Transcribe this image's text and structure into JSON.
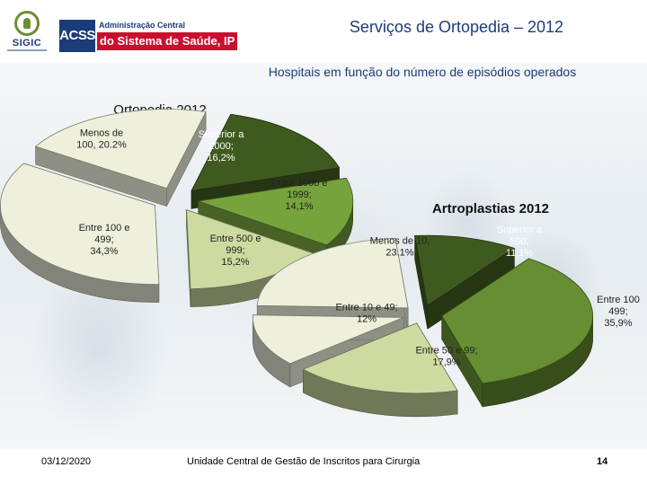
{
  "header": {
    "title": "Serviços de Ortopedia – 2012",
    "subtitle": "Hospitais em função do número de episódios operados",
    "logo_sigic": "SIGIC",
    "logo_acss_block": "ACSS",
    "logo_acss_line1": "Administração Central",
    "logo_acss_line2": "do Sistema de Saúde, IP"
  },
  "chart_data": [
    {
      "type": "pie",
      "title": "Ortopedia 2012",
      "categories": [
        "Menos de 100",
        "Superior a 2000",
        "Entre 1000 e 1999",
        "Entre 500 e 999",
        "Entre 100 e 499"
      ],
      "values": [
        20.2,
        16.2,
        14.1,
        15.2,
        34.3
      ],
      "labels": [
        [
          "Menos de",
          "100, 20.2%"
        ],
        [
          "Superior a",
          "2000;",
          "16,2%"
        ],
        [
          "Entre 1000 e",
          "1999;",
          "14,1%"
        ],
        [
          "Entre 500 e",
          "999;",
          "15,2%"
        ],
        [
          "Entre 100 e",
          "499;",
          "34,3%"
        ]
      ],
      "colors": [
        "#eef0dc",
        "#3f5a1f",
        "#77a33c",
        "#cddaa0",
        "#eef0dc"
      ],
      "exploded": true,
      "style": "3d"
    },
    {
      "type": "pie",
      "title": "Artroplastias 2012",
      "categories": [
        "Menos de 10",
        "Superior a 500",
        "Entre 100 e 499",
        "Entre 50 e 99",
        "Entre 10 e 49"
      ],
      "values": [
        23.1,
        11.1,
        35.9,
        17.9,
        12
      ],
      "labels": [
        [
          "Menos de 10,",
          "23.1%"
        ],
        [
          "Superior a",
          "500;",
          "11,1%"
        ],
        [
          "Entre 100",
          "499;",
          "35,9%"
        ],
        [
          "Entre 50 e 99;",
          "17,9%"
        ],
        [
          "Entre 10 e 49;",
          "12%"
        ]
      ],
      "colors": [
        "#eef0dc",
        "#3f5a1f",
        "#668f33",
        "#cddaa0",
        "#eef0dc"
      ],
      "exploded": true,
      "style": "3d"
    }
  ],
  "footer": {
    "date": "03/12/2020",
    "organization": "Unidade Central de Gestão de Inscritos para Cirurgia",
    "page_number": "14"
  }
}
